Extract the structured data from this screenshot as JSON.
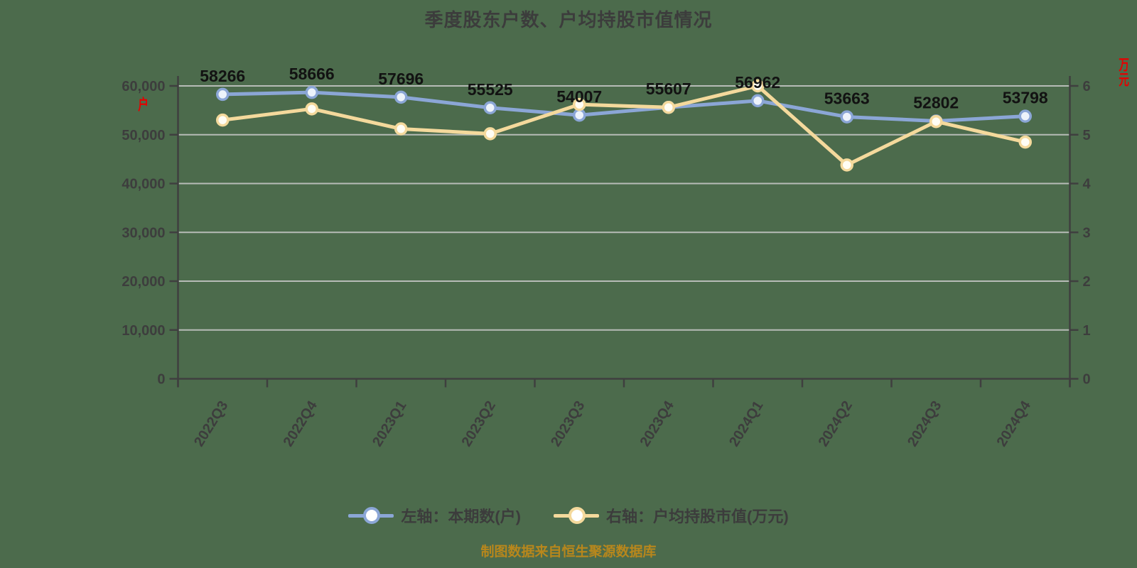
{
  "title": "季度股东户数、户均持股市值情况",
  "left_axis_unit": "户",
  "right_axis_unit": "万元",
  "caption": "制图数据来自恒生聚源数据库",
  "legend": {
    "items": [
      {
        "key": "current_holders",
        "label": "左轴：本期数(户)",
        "color": "#8ba6d6"
      },
      {
        "key": "avg_holding_value",
        "label": "右轴：户均持股市值(万元)",
        "color": "#f4d99c"
      }
    ]
  },
  "colors": {
    "background": "#4c6b4c",
    "grid": "#b7bcb7",
    "axis": "#3f3f3f",
    "tick_text": "#3d3d3d",
    "data_label": "#121212",
    "unit_text": "#e60000",
    "caption_text": "#b8871c",
    "title_text": "#3c3c3c",
    "legend_text": "#3c3c3c"
  },
  "chart_data": {
    "type": "line",
    "title": "季度股东户数、户均持股市值情况",
    "categories": [
      "2022Q3",
      "2022Q4",
      "2023Q1",
      "2023Q2",
      "2023Q3",
      "2023Q4",
      "2024Q1",
      "2024Q2",
      "2024Q3",
      "2024Q4"
    ],
    "series": [
      {
        "key": "current_holders",
        "name": "左轴：本期数(户)",
        "axis": "left",
        "color": "#8ba6d6",
        "marker_fill": "#edf3fb",
        "show_labels": true,
        "values": [
          58266,
          58666,
          57696,
          55525,
          54007,
          55607,
          56962,
          53663,
          52802,
          53798
        ]
      },
      {
        "key": "avg_holding_value",
        "name": "右轴：户均持股市值(万元)",
        "axis": "right",
        "color": "#f4d99c",
        "marker_fill": "#fffdf4",
        "show_labels": false,
        "values": [
          5.3,
          5.53,
          5.12,
          5.02,
          5.62,
          5.56,
          6.0,
          4.38,
          5.27,
          4.85
        ]
      }
    ],
    "left_axis": {
      "min": 0,
      "max": 60000,
      "tick_step": 10000,
      "tick_labels": [
        "0",
        "10,000",
        "20,000",
        "30,000",
        "40,000",
        "50,000",
        "60,000"
      ]
    },
    "right_axis": {
      "min": 0,
      "max": 6,
      "tick_step": 1,
      "tick_labels": [
        "0",
        "1",
        "2",
        "3",
        "4",
        "5",
        "6"
      ]
    },
    "grid": true,
    "legend_position": "bottom"
  }
}
